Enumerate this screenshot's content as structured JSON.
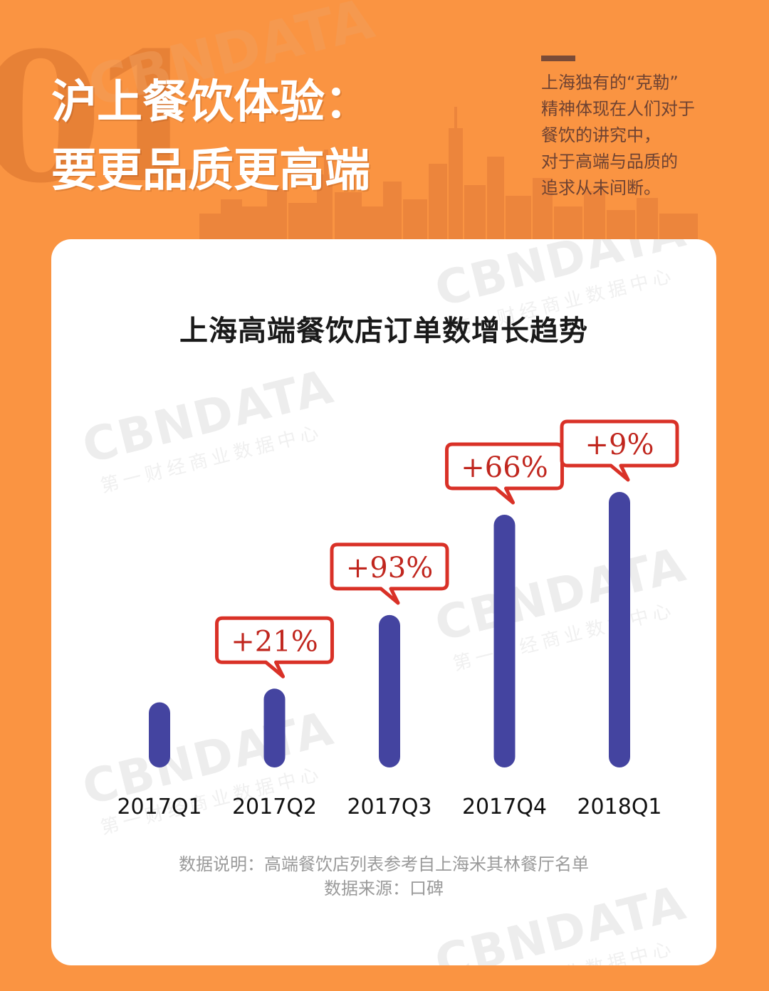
{
  "header": {
    "number": "01",
    "title_line1": "沪上餐饮体验：",
    "title_line2": "要更品质更高端",
    "watermark": "CBNDATA",
    "side_note": [
      "上海独有的“克勒”",
      "精神体现在人们对于",
      "餐饮的讲究中，",
      "对于高端与品质的",
      "追求从未间断。"
    ]
  },
  "watermark": {
    "brand": "CBNDATA",
    "subtitle": "第一财经商业数据中心"
  },
  "notes": {
    "description": "数据说明：高端餐饮店列表参考自上海米其林餐厅名单",
    "source": "数据来源：口碑"
  },
  "colors": {
    "background": "#FA9442",
    "bar": "#4444A0",
    "label_border": "#D93127",
    "label_text": "#C0261E"
  },
  "chart_data": {
    "type": "bar",
    "title": "上海高端餐饮店订单数增长趋势",
    "categories": [
      "2017Q1",
      "2017Q2",
      "2017Q3",
      "2017Q4",
      "2018Q1"
    ],
    "values": [
      100,
      121,
      234,
      388,
      423
    ],
    "growth_labels": [
      "",
      "+21%",
      "+93%",
      "+66%",
      "+9%"
    ],
    "xlabel": "",
    "ylabel": "",
    "ylim": [
      0,
      423
    ],
    "grid": false
  }
}
